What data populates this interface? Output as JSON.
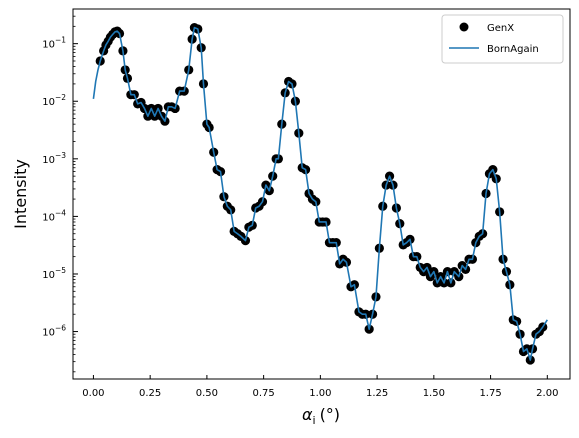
{
  "chart_data": {
    "type": "scatter",
    "xlabel_symbol": "α",
    "xlabel_sub": "i",
    "xlabel_unit": "(°)",
    "ylabel": "Intensity",
    "xlim": [
      -0.09,
      2.1
    ],
    "ylim": [
      1.5e-07,
      0.4
    ],
    "yscale": "log",
    "x_ticks": [
      0.0,
      0.25,
      0.5,
      0.75,
      1.0,
      1.25,
      1.5,
      1.75,
      2.0
    ],
    "x_tick_labels": [
      "0.00",
      "0.25",
      "0.50",
      "0.75",
      "1.00",
      "1.25",
      "1.50",
      "1.75",
      "2.00"
    ],
    "y_ticks": [
      1e-06,
      1e-05,
      0.0001,
      0.001,
      0.01,
      0.1
    ],
    "y_tick_base": "10",
    "y_tick_exponents": [
      "−6",
      "−5",
      "−4",
      "−3",
      "−2",
      "−1"
    ],
    "grid": false,
    "legend_position": "top-right",
    "colors": {
      "genx": "#000000",
      "bornagain": "#1f77b4"
    },
    "series": [
      {
        "name": "GenX",
        "kind": "markers",
        "points": [
          [
            0.03,
            0.05
          ],
          [
            0.045,
            0.075
          ],
          [
            0.055,
            0.095
          ],
          [
            0.065,
            0.11
          ],
          [
            0.075,
            0.13
          ],
          [
            0.085,
            0.145
          ],
          [
            0.095,
            0.16
          ],
          [
            0.105,
            0.165
          ],
          [
            0.115,
            0.15
          ],
          [
            0.13,
            0.075
          ],
          [
            0.14,
            0.035
          ],
          [
            0.15,
            0.025
          ],
          [
            0.165,
            0.013
          ],
          [
            0.18,
            0.013
          ],
          [
            0.195,
            0.009
          ],
          [
            0.21,
            0.0095
          ],
          [
            0.225,
            0.0075
          ],
          [
            0.24,
            0.0055
          ],
          [
            0.255,
            0.0075
          ],
          [
            0.27,
            0.0055
          ],
          [
            0.285,
            0.0075
          ],
          [
            0.3,
            0.0055
          ],
          [
            0.315,
            0.0045
          ],
          [
            0.33,
            0.008
          ],
          [
            0.345,
            0.008
          ],
          [
            0.36,
            0.0075
          ],
          [
            0.38,
            0.015
          ],
          [
            0.4,
            0.015
          ],
          [
            0.42,
            0.035
          ],
          [
            0.435,
            0.12
          ],
          [
            0.445,
            0.19
          ],
          [
            0.46,
            0.18
          ],
          [
            0.475,
            0.085
          ],
          [
            0.485,
            0.02
          ],
          [
            0.5,
            0.004
          ],
          [
            0.51,
            0.0035
          ],
          [
            0.53,
            0.0013
          ],
          [
            0.545,
            0.00065
          ],
          [
            0.56,
            0.0006
          ],
          [
            0.575,
            0.00022
          ],
          [
            0.59,
            0.00015
          ],
          [
            0.605,
            0.00013
          ],
          [
            0.62,
            5.5e-05
          ],
          [
            0.635,
            5e-05
          ],
          [
            0.65,
            4.5e-05
          ],
          [
            0.67,
            3.8e-05
          ],
          [
            0.685,
            6.5e-05
          ],
          [
            0.7,
            7e-05
          ],
          [
            0.715,
            0.00014
          ],
          [
            0.73,
            0.00015
          ],
          [
            0.745,
            0.00018
          ],
          [
            0.76,
            0.00035
          ],
          [
            0.775,
            0.00028
          ],
          [
            0.79,
            0.0005
          ],
          [
            0.805,
            0.001
          ],
          [
            0.815,
            0.001
          ],
          [
            0.83,
            0.004
          ],
          [
            0.845,
            0.014
          ],
          [
            0.86,
            0.022
          ],
          [
            0.875,
            0.02
          ],
          [
            0.89,
            0.01
          ],
          [
            0.905,
            0.0028
          ],
          [
            0.92,
            0.0007
          ],
          [
            0.935,
            0.00065
          ],
          [
            0.95,
            0.00025
          ],
          [
            0.965,
            0.0002
          ],
          [
            0.98,
            0.00018
          ],
          [
            0.995,
            8e-05
          ],
          [
            1.01,
            8e-05
          ],
          [
            1.025,
            8e-05
          ],
          [
            1.04,
            3.5e-05
          ],
          [
            1.055,
            3.5e-05
          ],
          [
            1.07,
            3.5e-05
          ],
          [
            1.085,
            1.5e-05
          ],
          [
            1.1,
            1.8e-05
          ],
          [
            1.115,
            1.6e-05
          ],
          [
            1.135,
            6e-06
          ],
          [
            1.15,
            6.5e-06
          ],
          [
            1.17,
            2.2e-06
          ],
          [
            1.185,
            2e-06
          ],
          [
            1.2,
            2e-06
          ],
          [
            1.215,
            1.1e-06
          ],
          [
            1.23,
            2e-06
          ],
          [
            1.245,
            4e-06
          ],
          [
            1.26,
            2.8e-05
          ],
          [
            1.275,
            0.00015
          ],
          [
            1.29,
            0.00035
          ],
          [
            1.305,
            0.0005
          ],
          [
            1.32,
            0.00035
          ],
          [
            1.335,
            0.00014
          ],
          [
            1.35,
            7.5e-05
          ],
          [
            1.365,
            3.2e-05
          ],
          [
            1.38,
            3.5e-05
          ],
          [
            1.395,
            4e-05
          ],
          [
            1.41,
            2e-05
          ],
          [
            1.425,
            2e-05
          ],
          [
            1.44,
            1.3e-05
          ],
          [
            1.455,
            1.1e-05
          ],
          [
            1.47,
            1.3e-05
          ],
          [
            1.485,
            9e-06
          ],
          [
            1.5,
            1.1e-05
          ],
          [
            1.515,
            7e-06
          ],
          [
            1.53,
            9e-06
          ],
          [
            1.545,
            7e-06
          ],
          [
            1.56,
            1.1e-05
          ],
          [
            1.575,
            7e-06
          ],
          [
            1.59,
            1.1e-05
          ],
          [
            1.61,
            9e-06
          ],
          [
            1.625,
            1.4e-05
          ],
          [
            1.64,
            1.2e-05
          ],
          [
            1.655,
            1.8e-05
          ],
          [
            1.67,
            1.8e-05
          ],
          [
            1.685,
            3.5e-05
          ],
          [
            1.7,
            4.5e-05
          ],
          [
            1.715,
            5e-05
          ],
          [
            1.73,
            0.00025
          ],
          [
            1.745,
            0.00055
          ],
          [
            1.76,
            0.00065
          ],
          [
            1.775,
            0.00045
          ],
          [
            1.79,
            0.00012
          ],
          [
            1.805,
            1.8e-05
          ],
          [
            1.82,
            1.1e-05
          ],
          [
            1.835,
            6.5e-06
          ],
          [
            1.85,
            1.6e-06
          ],
          [
            1.865,
            1.5e-06
          ],
          [
            1.88,
            9e-07
          ],
          [
            1.895,
            4.5e-07
          ],
          [
            1.91,
            5e-07
          ],
          [
            1.925,
            3.2e-07
          ],
          [
            1.935,
            5e-07
          ],
          [
            1.95,
            9e-07
          ],
          [
            1.965,
            1e-06
          ],
          [
            1.98,
            1.2e-06
          ]
        ]
      },
      {
        "name": "BornAgain",
        "kind": "line",
        "points": [
          [
            0.0,
            0.011
          ],
          [
            0.01,
            0.022
          ],
          [
            0.02,
            0.035
          ],
          [
            0.03,
            0.05
          ],
          [
            0.045,
            0.075
          ],
          [
            0.055,
            0.095
          ],
          [
            0.065,
            0.11
          ],
          [
            0.075,
            0.13
          ],
          [
            0.085,
            0.145
          ],
          [
            0.095,
            0.16
          ],
          [
            0.105,
            0.165
          ],
          [
            0.115,
            0.15
          ],
          [
            0.13,
            0.075
          ],
          [
            0.14,
            0.035
          ],
          [
            0.15,
            0.025
          ],
          [
            0.165,
            0.013
          ],
          [
            0.18,
            0.013
          ],
          [
            0.195,
            0.009
          ],
          [
            0.21,
            0.0095
          ],
          [
            0.225,
            0.0075
          ],
          [
            0.24,
            0.0055
          ],
          [
            0.255,
            0.0075
          ],
          [
            0.27,
            0.0055
          ],
          [
            0.285,
            0.0075
          ],
          [
            0.3,
            0.0055
          ],
          [
            0.315,
            0.0045
          ],
          [
            0.33,
            0.008
          ],
          [
            0.345,
            0.008
          ],
          [
            0.36,
            0.0075
          ],
          [
            0.38,
            0.015
          ],
          [
            0.4,
            0.015
          ],
          [
            0.42,
            0.035
          ],
          [
            0.435,
            0.12
          ],
          [
            0.445,
            0.19
          ],
          [
            0.46,
            0.18
          ],
          [
            0.475,
            0.085
          ],
          [
            0.485,
            0.02
          ],
          [
            0.5,
            0.004
          ],
          [
            0.51,
            0.0035
          ],
          [
            0.53,
            0.0013
          ],
          [
            0.545,
            0.00065
          ],
          [
            0.56,
            0.0006
          ],
          [
            0.575,
            0.00022
          ],
          [
            0.59,
            0.00015
          ],
          [
            0.605,
            0.00013
          ],
          [
            0.62,
            5.5e-05
          ],
          [
            0.635,
            5e-05
          ],
          [
            0.65,
            4.5e-05
          ],
          [
            0.67,
            3.8e-05
          ],
          [
            0.685,
            6.5e-05
          ],
          [
            0.7,
            7e-05
          ],
          [
            0.715,
            0.00014
          ],
          [
            0.73,
            0.00015
          ],
          [
            0.745,
            0.00018
          ],
          [
            0.76,
            0.00035
          ],
          [
            0.775,
            0.00028
          ],
          [
            0.79,
            0.0005
          ],
          [
            0.805,
            0.001
          ],
          [
            0.815,
            0.001
          ],
          [
            0.83,
            0.004
          ],
          [
            0.845,
            0.014
          ],
          [
            0.86,
            0.022
          ],
          [
            0.875,
            0.02
          ],
          [
            0.89,
            0.01
          ],
          [
            0.905,
            0.0028
          ],
          [
            0.92,
            0.0007
          ],
          [
            0.935,
            0.00065
          ],
          [
            0.95,
            0.00025
          ],
          [
            0.965,
            0.0002
          ],
          [
            0.98,
            0.00018
          ],
          [
            0.995,
            8e-05
          ],
          [
            1.01,
            8e-05
          ],
          [
            1.025,
            8e-05
          ],
          [
            1.04,
            3.5e-05
          ],
          [
            1.055,
            3.5e-05
          ],
          [
            1.07,
            3.5e-05
          ],
          [
            1.085,
            1.5e-05
          ],
          [
            1.1,
            1.8e-05
          ],
          [
            1.115,
            1.6e-05
          ],
          [
            1.135,
            6e-06
          ],
          [
            1.15,
            6.5e-06
          ],
          [
            1.17,
            2.2e-06
          ],
          [
            1.185,
            2e-06
          ],
          [
            1.2,
            2e-06
          ],
          [
            1.215,
            1.1e-06
          ],
          [
            1.23,
            2e-06
          ],
          [
            1.245,
            4e-06
          ],
          [
            1.26,
            2.8e-05
          ],
          [
            1.275,
            0.00015
          ],
          [
            1.29,
            0.00035
          ],
          [
            1.305,
            0.0005
          ],
          [
            1.32,
            0.00035
          ],
          [
            1.335,
            0.00014
          ],
          [
            1.35,
            7.5e-05
          ],
          [
            1.365,
            3.2e-05
          ],
          [
            1.38,
            3.5e-05
          ],
          [
            1.395,
            4e-05
          ],
          [
            1.41,
            2e-05
          ],
          [
            1.425,
            2e-05
          ],
          [
            1.44,
            1.3e-05
          ],
          [
            1.455,
            1.1e-05
          ],
          [
            1.47,
            1.3e-05
          ],
          [
            1.485,
            9e-06
          ],
          [
            1.5,
            1.1e-05
          ],
          [
            1.515,
            7e-06
          ],
          [
            1.53,
            9e-06
          ],
          [
            1.545,
            7e-06
          ],
          [
            1.56,
            1.1e-05
          ],
          [
            1.575,
            7e-06
          ],
          [
            1.59,
            1.1e-05
          ],
          [
            1.61,
            9e-06
          ],
          [
            1.625,
            1.4e-05
          ],
          [
            1.64,
            1.2e-05
          ],
          [
            1.655,
            1.8e-05
          ],
          [
            1.67,
            1.8e-05
          ],
          [
            1.685,
            3.5e-05
          ],
          [
            1.7,
            4.5e-05
          ],
          [
            1.715,
            5e-05
          ],
          [
            1.73,
            0.00025
          ],
          [
            1.745,
            0.00055
          ],
          [
            1.76,
            0.00065
          ],
          [
            1.775,
            0.00045
          ],
          [
            1.79,
            0.00012
          ],
          [
            1.805,
            1.8e-05
          ],
          [
            1.82,
            1.1e-05
          ],
          [
            1.835,
            6.5e-06
          ],
          [
            1.85,
            1.6e-06
          ],
          [
            1.865,
            1.5e-06
          ],
          [
            1.88,
            9e-07
          ],
          [
            1.895,
            4.5e-07
          ],
          [
            1.91,
            5e-07
          ],
          [
            1.925,
            3.2e-07
          ],
          [
            1.935,
            5e-07
          ],
          [
            1.95,
            9e-07
          ],
          [
            1.965,
            1e-06
          ],
          [
            1.98,
            1.2e-06
          ],
          [
            2.0,
            1.6e-06
          ]
        ]
      }
    ]
  }
}
